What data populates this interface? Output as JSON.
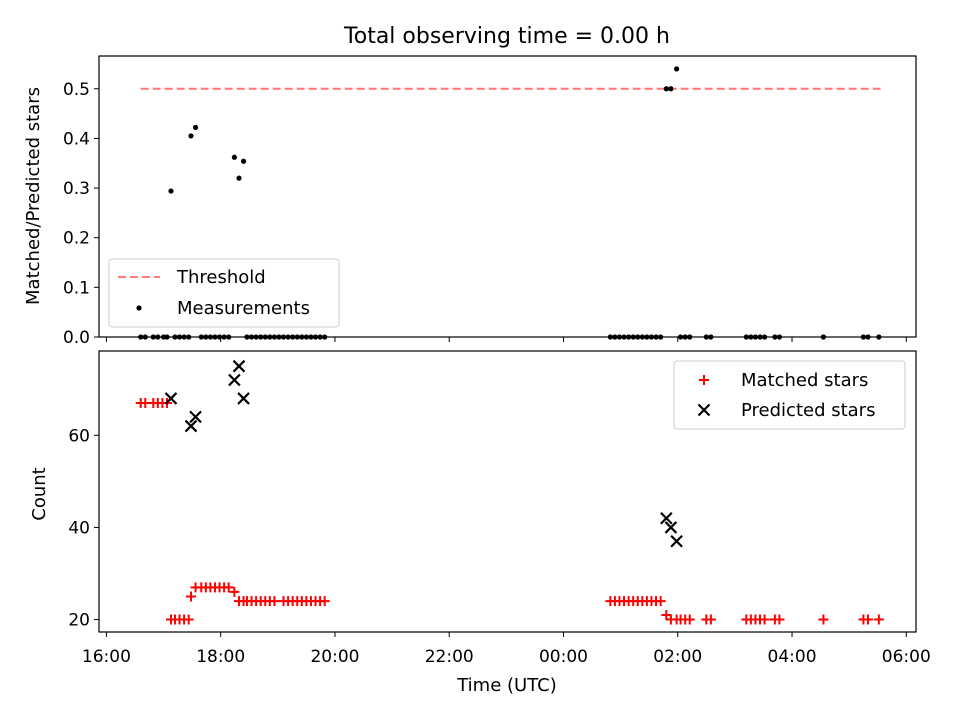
{
  "figure": {
    "title": "Total observing time = 0.00 h"
  },
  "chart_data": [
    {
      "type": "scatter",
      "panel": "top",
      "title": "Total observing time = 0.00 h",
      "ylabel": "Matched/Predicted stars",
      "xlabel": "",
      "xlim": [
        15.87,
        30.17
      ],
      "ylim": [
        0.0,
        0.566
      ],
      "yticks": [
        0.0,
        0.1,
        0.2,
        0.3,
        0.4,
        0.5
      ],
      "ytick_labels": [
        "0.0",
        "0.1",
        "0.2",
        "0.3",
        "0.4",
        "0.5"
      ],
      "legend": {
        "placement": "lower-left",
        "entries": [
          "Threshold",
          "Measurements"
        ]
      },
      "threshold": {
        "name": "Threshold",
        "y": 0.5,
        "x_range": [
          16.6,
          29.55
        ],
        "color": "#ff7777",
        "style": "dashed"
      },
      "series": [
        {
          "name": "Measurements",
          "color": "#000000",
          "marker": "dot",
          "points": [
            [
              17.13,
              0.294
            ],
            [
              17.48,
              0.405
            ],
            [
              17.56,
              0.422
            ],
            [
              18.24,
              0.362
            ],
            [
              18.32,
              0.32
            ],
            [
              18.4,
              0.354
            ],
            [
              25.8,
              0.5
            ],
            [
              25.88,
              0.5
            ],
            [
              25.98,
              0.54
            ],
            [
              16.6,
              0.0
            ],
            [
              16.68,
              0.0
            ],
            [
              16.82,
              0.0
            ],
            [
              16.9,
              0.0
            ],
            [
              17.0,
              0.0
            ],
            [
              17.06,
              0.0
            ],
            [
              17.2,
              0.0
            ],
            [
              17.28,
              0.0
            ],
            [
              17.36,
              0.0
            ],
            [
              17.44,
              0.0
            ],
            [
              17.66,
              0.0
            ],
            [
              17.74,
              0.0
            ],
            [
              17.82,
              0.0
            ],
            [
              17.9,
              0.0
            ],
            [
              17.98,
              0.0
            ],
            [
              18.06,
              0.0
            ],
            [
              18.14,
              0.0
            ],
            [
              18.46,
              0.0
            ],
            [
              18.54,
              0.0
            ],
            [
              18.62,
              0.0
            ],
            [
              18.7,
              0.0
            ],
            [
              18.78,
              0.0
            ],
            [
              18.86,
              0.0
            ],
            [
              18.94,
              0.0
            ],
            [
              19.02,
              0.0
            ],
            [
              19.1,
              0.0
            ],
            [
              19.18,
              0.0
            ],
            [
              19.26,
              0.0
            ],
            [
              19.34,
              0.0
            ],
            [
              19.42,
              0.0
            ],
            [
              19.5,
              0.0
            ],
            [
              19.58,
              0.0
            ],
            [
              19.66,
              0.0
            ],
            [
              19.74,
              0.0
            ],
            [
              19.82,
              0.0
            ],
            [
              24.82,
              0.0
            ],
            [
              24.9,
              0.0
            ],
            [
              24.98,
              0.0
            ],
            [
              25.06,
              0.0
            ],
            [
              25.14,
              0.0
            ],
            [
              25.22,
              0.0
            ],
            [
              25.3,
              0.0
            ],
            [
              25.38,
              0.0
            ],
            [
              25.46,
              0.0
            ],
            [
              25.54,
              0.0
            ],
            [
              25.62,
              0.0
            ],
            [
              25.7,
              0.0
            ],
            [
              26.05,
              0.0
            ],
            [
              26.13,
              0.0
            ],
            [
              26.21,
              0.0
            ],
            [
              26.5,
              0.0
            ],
            [
              26.58,
              0.0
            ],
            [
              27.2,
              0.0
            ],
            [
              27.28,
              0.0
            ],
            [
              27.36,
              0.0
            ],
            [
              27.44,
              0.0
            ],
            [
              27.52,
              0.0
            ],
            [
              27.7,
              0.0
            ],
            [
              27.78,
              0.0
            ],
            [
              28.55,
              0.0
            ],
            [
              29.25,
              0.0
            ],
            [
              29.33,
              0.0
            ],
            [
              29.52,
              0.0
            ]
          ]
        }
      ]
    },
    {
      "type": "scatter",
      "panel": "bottom",
      "xlabel": "Time (UTC)",
      "ylabel": "Count",
      "xlim": [
        15.87,
        30.17
      ],
      "ylim": [
        17.3,
        78.3
      ],
      "xticks": [
        16,
        18,
        20,
        22,
        24,
        26,
        28,
        30
      ],
      "xtick_labels": [
        "16:00",
        "18:00",
        "20:00",
        "22:00",
        "00:00",
        "02:00",
        "04:00",
        "06:00"
      ],
      "yticks": [
        20,
        40,
        60
      ],
      "ytick_labels": [
        "20",
        "40",
        "60"
      ],
      "legend": {
        "placement": "upper-right",
        "entries": [
          "Matched stars",
          "Predicted stars"
        ]
      },
      "series": [
        {
          "name": "Matched stars",
          "color": "#ff0000",
          "marker": "plus",
          "points": [
            [
              16.6,
              67
            ],
            [
              16.68,
              67
            ],
            [
              16.82,
              67
            ],
            [
              16.9,
              67
            ],
            [
              16.98,
              67
            ],
            [
              17.06,
              67
            ],
            [
              17.13,
              20
            ],
            [
              17.2,
              20
            ],
            [
              17.28,
              20
            ],
            [
              17.36,
              20
            ],
            [
              17.44,
              20
            ],
            [
              17.48,
              25
            ],
            [
              17.56,
              27
            ],
            [
              17.66,
              27
            ],
            [
              17.74,
              27
            ],
            [
              17.82,
              27
            ],
            [
              17.9,
              27
            ],
            [
              17.98,
              27
            ],
            [
              18.06,
              27
            ],
            [
              18.14,
              27
            ],
            [
              18.24,
              26
            ],
            [
              18.32,
              24
            ],
            [
              18.4,
              24
            ],
            [
              18.46,
              24
            ],
            [
              18.54,
              24
            ],
            [
              18.62,
              24
            ],
            [
              18.7,
              24
            ],
            [
              18.78,
              24
            ],
            [
              18.86,
              24
            ],
            [
              18.94,
              24
            ],
            [
              19.1,
              24
            ],
            [
              19.18,
              24
            ],
            [
              19.26,
              24
            ],
            [
              19.34,
              24
            ],
            [
              19.42,
              24
            ],
            [
              19.5,
              24
            ],
            [
              19.58,
              24
            ],
            [
              19.66,
              24
            ],
            [
              19.74,
              24
            ],
            [
              19.82,
              24
            ],
            [
              24.82,
              24
            ],
            [
              24.9,
              24
            ],
            [
              24.98,
              24
            ],
            [
              25.06,
              24
            ],
            [
              25.14,
              24
            ],
            [
              25.22,
              24
            ],
            [
              25.3,
              24
            ],
            [
              25.38,
              24
            ],
            [
              25.46,
              24
            ],
            [
              25.54,
              24
            ],
            [
              25.62,
              24
            ],
            [
              25.7,
              24
            ],
            [
              25.8,
              21
            ],
            [
              25.88,
              20
            ],
            [
              25.98,
              20
            ],
            [
              26.05,
              20
            ],
            [
              26.13,
              20
            ],
            [
              26.21,
              20
            ],
            [
              26.5,
              20
            ],
            [
              26.58,
              20
            ],
            [
              27.2,
              20
            ],
            [
              27.28,
              20
            ],
            [
              27.36,
              20
            ],
            [
              27.44,
              20
            ],
            [
              27.52,
              20
            ],
            [
              27.7,
              20
            ],
            [
              27.78,
              20
            ],
            [
              28.55,
              20
            ],
            [
              29.25,
              20
            ],
            [
              29.33,
              20
            ],
            [
              29.52,
              20
            ]
          ]
        },
        {
          "name": "Predicted stars",
          "color": "#000000",
          "marker": "x",
          "points": [
            [
              17.13,
              68
            ],
            [
              17.48,
              62
            ],
            [
              17.56,
              64
            ],
            [
              18.24,
              72
            ],
            [
              18.32,
              75
            ],
            [
              18.4,
              68
            ],
            [
              25.8,
              42
            ],
            [
              25.88,
              40
            ],
            [
              25.98,
              37
            ]
          ]
        }
      ]
    }
  ]
}
